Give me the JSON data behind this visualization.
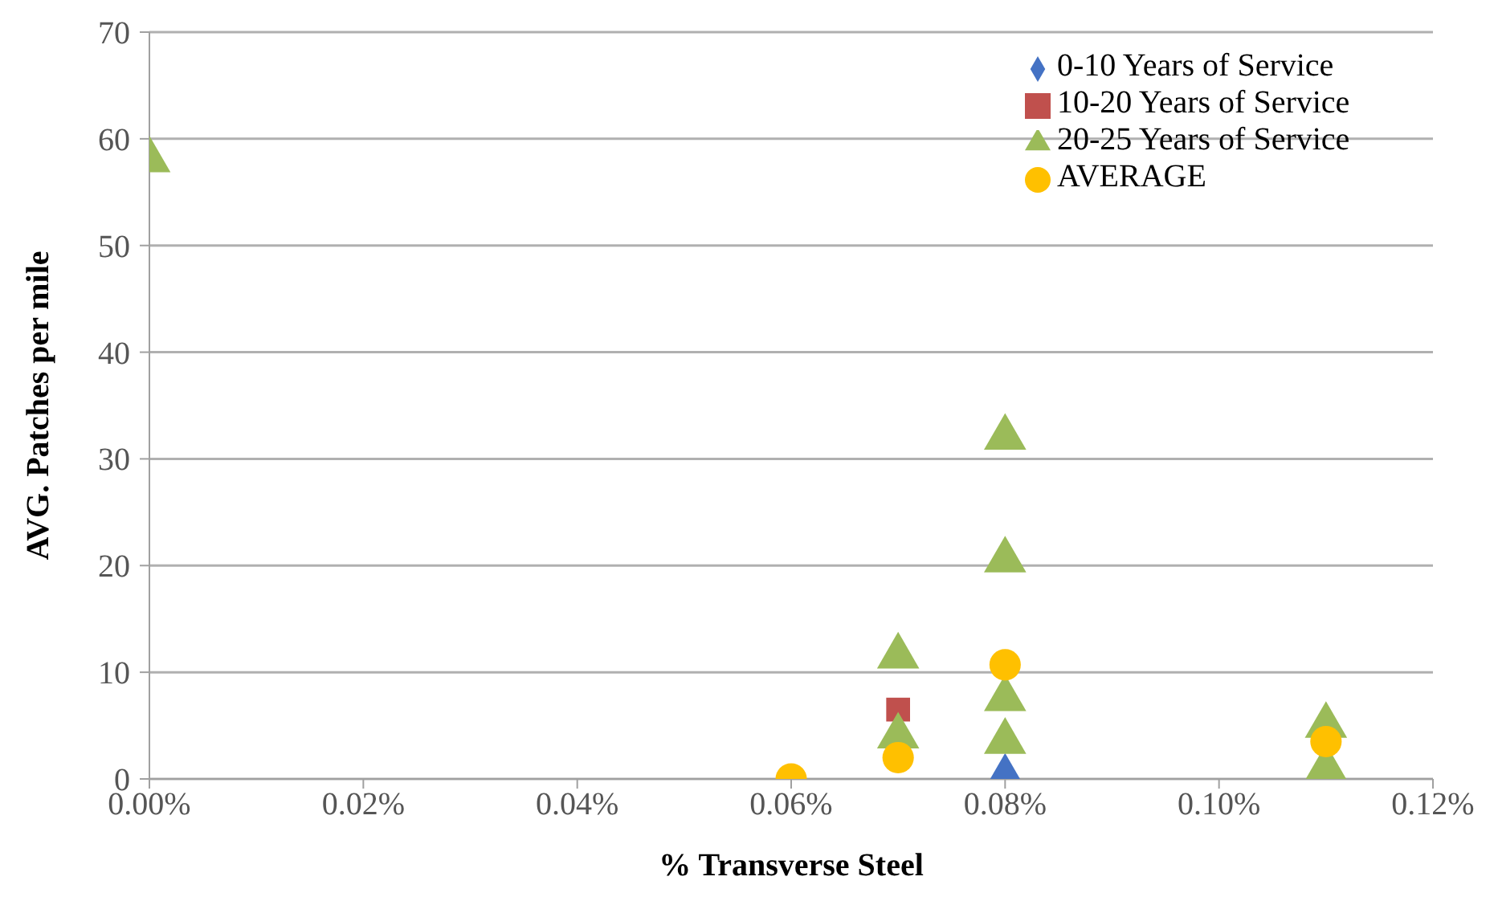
{
  "chart_data": {
    "type": "scatter",
    "xlabel": "% Transverse Steel",
    "ylabel": "AVG. Patches per mile",
    "xlim": [
      0,
      0.12
    ],
    "xticks": [
      {
        "value": 0,
        "label": "0.00%"
      },
      {
        "value": 0.02,
        "label": "0.02%"
      },
      {
        "value": 0.04,
        "label": "0.04%"
      },
      {
        "value": 0.06,
        "label": "0.06%"
      },
      {
        "value": 0.08,
        "label": "0.08%"
      },
      {
        "value": 0.1,
        "label": "0.10%"
      },
      {
        "value": 0.12,
        "label": "0.12%"
      }
    ],
    "ylim": [
      0,
      70
    ],
    "yticks": [
      0,
      10,
      20,
      30,
      40,
      50,
      60,
      70
    ],
    "grid": "y",
    "legend": "top right",
    "series": [
      {
        "name": "0-10 Years of Service",
        "color": "#4472c4",
        "marker": "diamond",
        "x": [
          0.08
        ],
        "values": [
          0
        ]
      },
      {
        "name": "10-20 Years of Service",
        "color": "#c0504d",
        "marker": "square",
        "x": [
          0.07
        ],
        "values": [
          6.5
        ]
      },
      {
        "name": "20-25 Years of Service",
        "color": "#9bbb59",
        "marker": "triangle",
        "x": [
          0,
          0.07,
          0.07,
          0.08,
          0.08,
          0.08,
          0.08,
          0.11,
          0.11
        ],
        "values": [
          58,
          11.5,
          4,
          32,
          20.5,
          7.5,
          3.5,
          5,
          1
        ]
      },
      {
        "name": "AVERAGE",
        "color": "#ffc000",
        "marker": "circle",
        "x": [
          0.06,
          0.07,
          0.08,
          0.11
        ],
        "values": [
          0,
          2,
          10.7,
          3.5
        ]
      }
    ]
  }
}
